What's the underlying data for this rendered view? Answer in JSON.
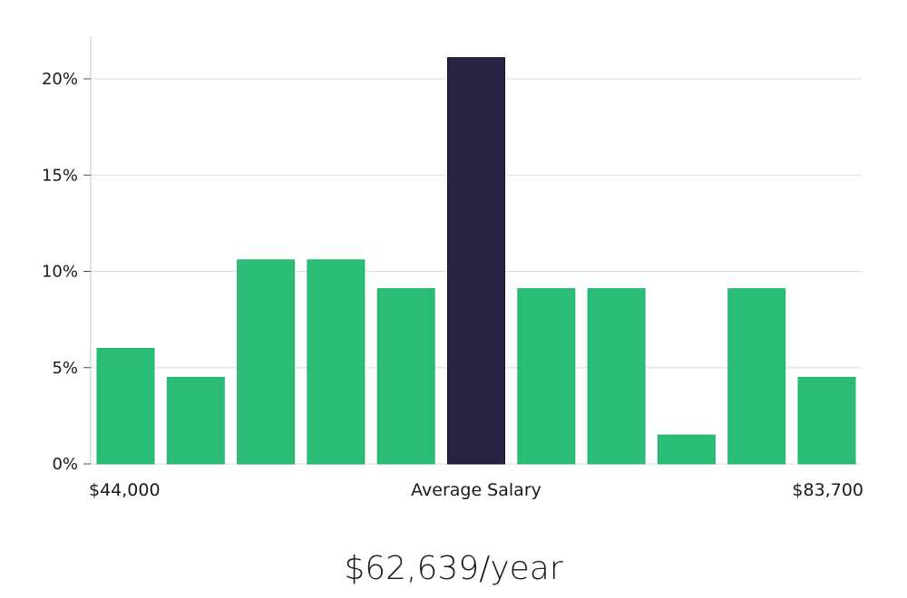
{
  "chart_data": {
    "type": "bar",
    "title": "",
    "xlabel": "Average Salary",
    "ylabel": "",
    "ylim": [
      0,
      22
    ],
    "yticks": [
      0,
      5,
      10,
      15,
      20
    ],
    "ytick_labels": [
      "0%",
      "5%",
      "10%",
      "15%",
      "20%"
    ],
    "x_range_labels": {
      "min": "$44,000",
      "max": "$83,700"
    },
    "values": [
      6.0,
      4.5,
      10.6,
      10.6,
      9.1,
      21.1,
      9.1,
      9.1,
      1.5,
      9.1,
      4.5
    ],
    "highlight_index": 5,
    "colors": {
      "bar": "#2bbd78",
      "highlight": "#272343",
      "grid": "#dddddd",
      "axis": "#cccccc"
    }
  },
  "summary": {
    "average_salary": "$62,639/year"
  }
}
